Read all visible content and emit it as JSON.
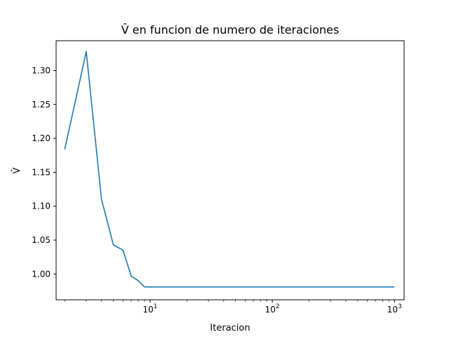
{
  "chart_data": {
    "type": "line",
    "title": "V̂ en funcion de numero de iteraciones",
    "xlabel": "Iteracion",
    "ylabel": "V̂",
    "x_scale": "log",
    "xlim": [
      1.7,
      1200
    ],
    "ylim": [
      0.962,
      1.344
    ],
    "x_ticks": [
      {
        "value": 10,
        "base": "10",
        "exp": "1"
      },
      {
        "value": 100,
        "base": "10",
        "exp": "2"
      },
      {
        "value": 1000,
        "base": "10",
        "exp": "3"
      }
    ],
    "y_ticks": [
      1.0,
      1.05,
      1.1,
      1.15,
      1.2,
      1.25,
      1.3
    ],
    "y_tick_labels": [
      "1.00",
      "1.05",
      "1.10",
      "1.15",
      "1.20",
      "1.25",
      "1.30"
    ],
    "grid": false,
    "series": [
      {
        "color": "#1f77b4",
        "x": [
          2,
          3,
          4,
          5,
          6,
          7,
          8,
          9,
          10,
          20,
          50,
          100,
          200,
          500,
          1000
        ],
        "y": [
          1.184,
          1.328,
          1.11,
          1.043,
          1.035,
          0.997,
          0.99,
          0.981,
          0.981,
          0.981,
          0.981,
          0.981,
          0.981,
          0.981,
          0.981
        ]
      }
    ]
  }
}
